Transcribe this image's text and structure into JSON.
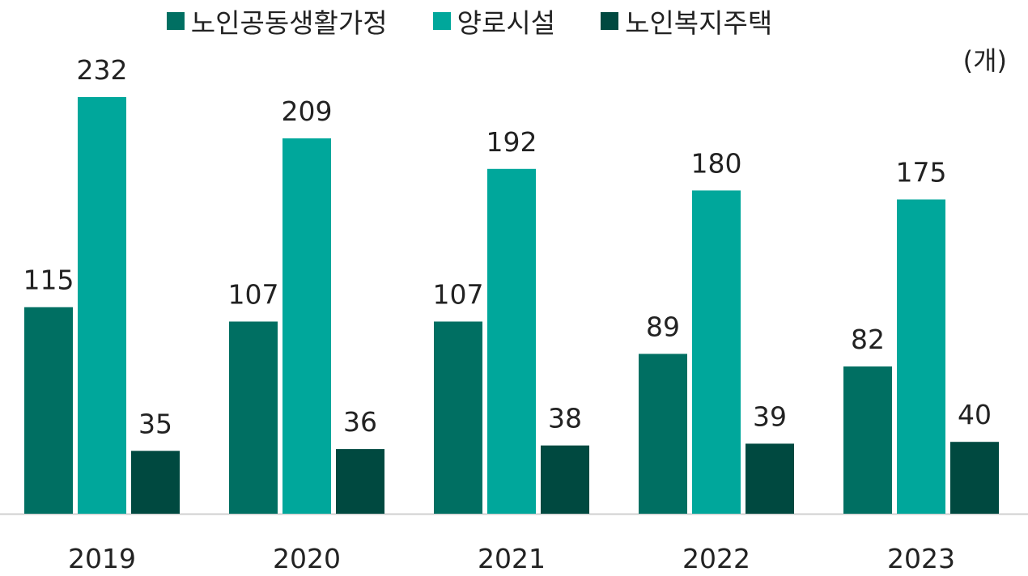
{
  "chart_data": {
    "type": "bar",
    "title": "",
    "xlabel": "",
    "ylabel": "",
    "unit_label": "(개)",
    "legend_position": "top",
    "grid": false,
    "ylim": [
      0,
      232
    ],
    "categories": [
      "2019",
      "2020",
      "2021",
      "2022",
      "2023"
    ],
    "series": [
      {
        "name": "노인공동생활가정",
        "color": "#006f62",
        "values": [
          115,
          107,
          107,
          89,
          82
        ]
      },
      {
        "name": "양로시설",
        "color": "#00a79b",
        "values": [
          232,
          209,
          192,
          180,
          175
        ]
      },
      {
        "name": "노인복지주택",
        "color": "#004940",
        "values": [
          35,
          36,
          38,
          39,
          40
        ]
      }
    ]
  }
}
